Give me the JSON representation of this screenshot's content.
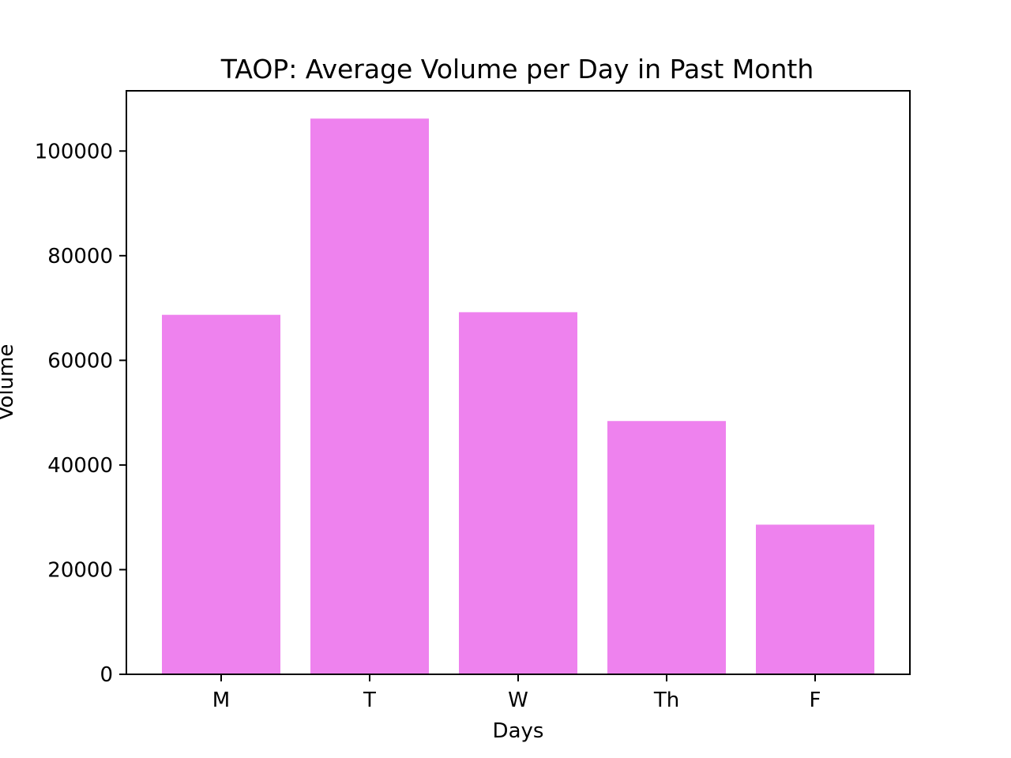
{
  "chart_data": {
    "type": "bar",
    "title": "TAOP: Average Volume per Day in Past Month",
    "xlabel": "Days",
    "ylabel": "Volume",
    "categories": [
      "M",
      "T",
      "W",
      "Th",
      "F"
    ],
    "values": [
      68700,
      106200,
      69200,
      48400,
      28600
    ],
    "ylim": [
      0,
      111510
    ],
    "yticks": [
      0,
      20000,
      40000,
      60000,
      80000,
      100000
    ],
    "grid": false,
    "bar_color": "#ee82ee",
    "axis_color": "#000000"
  }
}
